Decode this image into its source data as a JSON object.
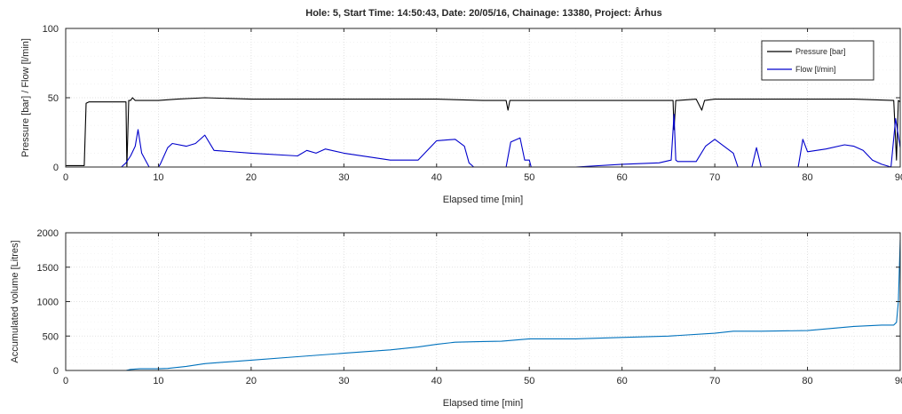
{
  "chart_data": [
    {
      "type": "line",
      "title": "Hole: 5, Start Time: 14:50:43, Date: 20/05/16, Chainage: 13380, Project: Århus",
      "xlabel": "Elapsed time [min]",
      "ylabel": "Pressure [bar] / Flow [l/min]",
      "xlim": [
        0,
        90
      ],
      "ylim": [
        0,
        100
      ],
      "x_ticks": [
        "0",
        "10",
        "20",
        "30",
        "40",
        "50",
        "60",
        "70",
        "80",
        "90"
      ],
      "y_ticks": [
        "0",
        "50",
        "100"
      ],
      "grid": true,
      "legend": "top-right",
      "series": [
        {
          "name": "Pressure [bar]",
          "color": "#000000",
          "x": [
            0,
            2.0,
            2.2,
            2.5,
            6.5,
            6.6,
            6.8,
            7.0,
            7.2,
            7.5,
            8,
            10,
            12,
            15,
            20,
            25,
            30,
            35,
            40,
            45,
            47.5,
            47.7,
            47.9,
            48.1,
            50,
            55,
            60,
            65,
            65.5,
            65.6,
            65.8,
            66,
            68,
            68.6,
            68.9,
            70,
            75,
            80,
            85,
            89.3,
            89.6,
            89.8,
            90
          ],
          "y": [
            1,
            1,
            46,
            47,
            47,
            0,
            48,
            48,
            50,
            48,
            48,
            48,
            49,
            50,
            49,
            49,
            49,
            49,
            49,
            48,
            48,
            41,
            48,
            48,
            48,
            48,
            48,
            48,
            48,
            27,
            48,
            48,
            49,
            41,
            48,
            49,
            49,
            49,
            49,
            48,
            5,
            48,
            47
          ]
        },
        {
          "name": "Flow [l/min]",
          "color": "#0000cc",
          "x": [
            0,
            6.0,
            6.5,
            7.0,
            7.5,
            7.8,
            8.2,
            8.6,
            9.0,
            10.0,
            10.2,
            11.0,
            11.5,
            13,
            14,
            15,
            16,
            20,
            25,
            26,
            27,
            28,
            30,
            35,
            38,
            40,
            42,
            43,
            43.5,
            44,
            46,
            47.5,
            48,
            49,
            49.5,
            50.0,
            50.2,
            55,
            60,
            64,
            65.3,
            65.6,
            65.8,
            66,
            68,
            69,
            70,
            72,
            72.5,
            74,
            74.5,
            75,
            79,
            79.5,
            80,
            82,
            84,
            85,
            86,
            87,
            88,
            89,
            89.5,
            90
          ],
          "y": [
            0,
            0,
            3,
            8,
            15,
            27,
            10,
            5,
            0,
            0,
            2,
            14,
            17,
            15,
            17,
            23,
            12,
            10,
            8,
            12,
            10,
            13,
            10,
            5,
            5,
            19,
            20,
            15,
            3,
            0,
            0,
            0,
            18,
            21,
            5,
            5,
            0,
            0,
            2,
            3,
            5,
            38,
            5,
            4,
            4,
            15,
            20,
            10,
            0,
            0,
            14,
            0,
            0,
            20,
            11,
            13,
            16,
            15,
            12,
            5,
            2,
            0,
            35,
            14
          ]
        }
      ]
    },
    {
      "type": "line",
      "title": "",
      "xlabel": "Elapsed time [min]",
      "ylabel": "Accumulated volume [Litres]",
      "xlim": [
        0,
        90
      ],
      "ylim": [
        0,
        2000
      ],
      "x_ticks": [
        "0",
        "10",
        "20",
        "30",
        "40",
        "50",
        "60",
        "70",
        "80",
        "90"
      ],
      "y_ticks": [
        "0",
        "500",
        "1000",
        "1500",
        "2000"
      ],
      "grid": true,
      "series": [
        {
          "color": "#0072bd",
          "x": [
            0,
            6.5,
            7,
            8,
            10,
            11,
            13,
            15,
            20,
            25,
            30,
            35,
            38,
            40,
            42,
            45,
            47,
            50,
            55,
            60,
            65,
            70,
            72,
            75,
            80,
            85,
            88,
            89.3,
            89.6,
            89.8,
            90
          ],
          "y": [
            0,
            0,
            15,
            25,
            25,
            30,
            60,
            100,
            150,
            200,
            250,
            300,
            340,
            380,
            410,
            420,
            425,
            460,
            460,
            480,
            500,
            540,
            570,
            570,
            580,
            640,
            660,
            660,
            700,
            1000,
            1900
          ]
        }
      ]
    }
  ]
}
